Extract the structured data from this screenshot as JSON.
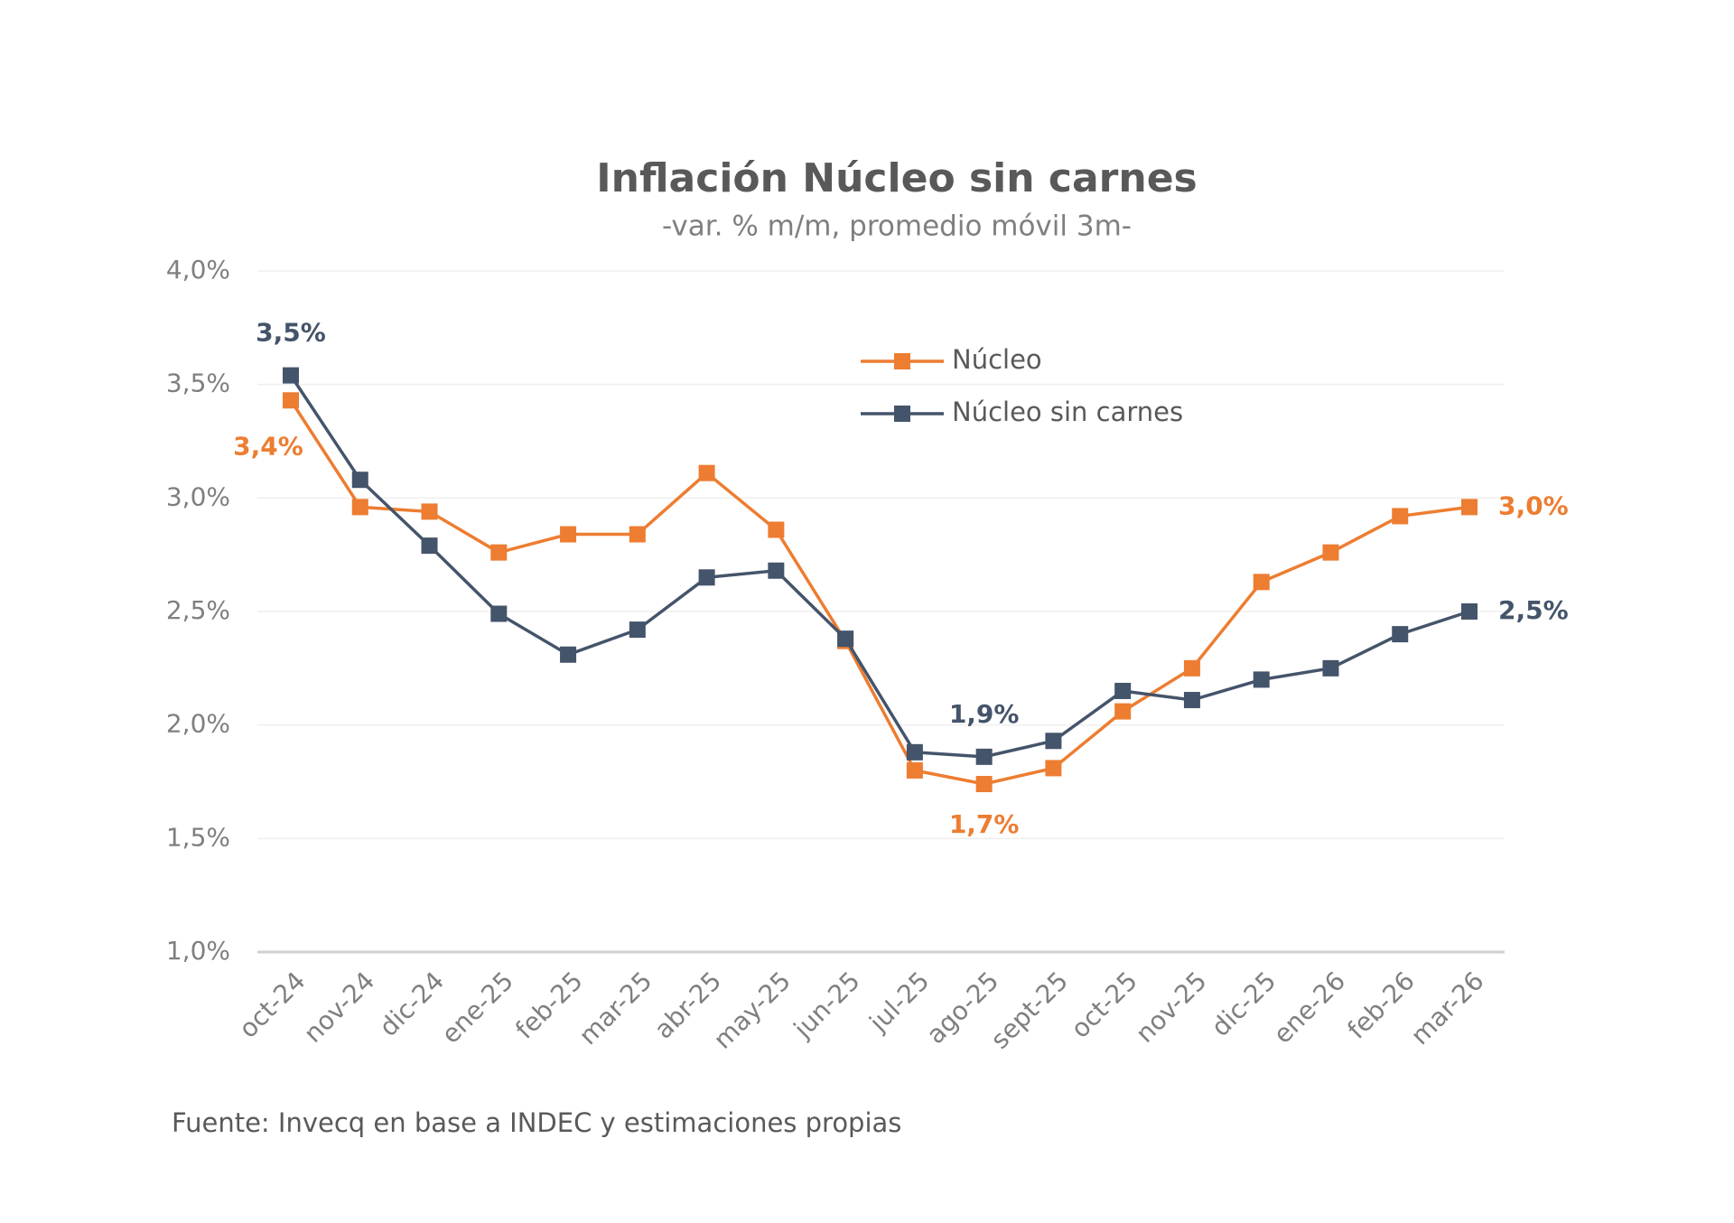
{
  "chart_data": {
    "type": "line",
    "title": "Inflación Núcleo sin carnes",
    "subtitle": "-var. % m/m, promedio móvil 3m-",
    "note": "Fuente: Invecq en base a INDEC y estimaciones propias",
    "categories": [
      "oct-24",
      "nov-24",
      "dic-24",
      "ene-25",
      "feb-25",
      "mar-25",
      "abr-25",
      "may-25",
      "jun-25",
      "jul-25",
      "ago-25",
      "sept-25",
      "oct-25",
      "nov-25",
      "dic-25",
      "ene-26",
      "feb-26",
      "mar-26"
    ],
    "series": [
      {
        "name": "Núcleo",
        "color": "#ed7d31",
        "values": [
          3.43,
          2.96,
          2.94,
          2.76,
          2.84,
          2.84,
          3.11,
          2.86,
          2.37,
          1.8,
          1.74,
          1.81,
          2.06,
          2.25,
          2.63,
          2.76,
          2.92,
          2.96
        ],
        "value_labels": [
          "3,4%",
          null,
          null,
          null,
          null,
          null,
          null,
          null,
          null,
          null,
          "1,7%",
          null,
          null,
          null,
          null,
          null,
          null,
          "3,0%"
        ]
      },
      {
        "name": "Núcleo sin carnes",
        "color": "#44546a",
        "values": [
          3.54,
          3.08,
          2.79,
          2.49,
          2.31,
          2.42,
          2.65,
          2.68,
          2.38,
          1.88,
          1.86,
          1.93,
          2.15,
          2.11,
          2.2,
          2.25,
          2.4,
          2.5
        ],
        "value_labels": [
          "3,5%",
          null,
          null,
          null,
          null,
          null,
          null,
          null,
          null,
          null,
          "1,9%",
          null,
          null,
          null,
          null,
          null,
          null,
          "2,5%"
        ]
      }
    ],
    "ylim": [
      1.0,
      4.0
    ],
    "yticks": [
      {
        "value": 1.0,
        "label": "1,0%"
      },
      {
        "value": 1.5,
        "label": "1,5%"
      },
      {
        "value": 2.0,
        "label": "2,0%"
      },
      {
        "value": 2.5,
        "label": "2,5%"
      },
      {
        "value": 3.0,
        "label": "3,0%"
      },
      {
        "value": 3.5,
        "label": "3,5%"
      },
      {
        "value": 4.0,
        "label": "4,0%"
      }
    ],
    "grid": true
  }
}
